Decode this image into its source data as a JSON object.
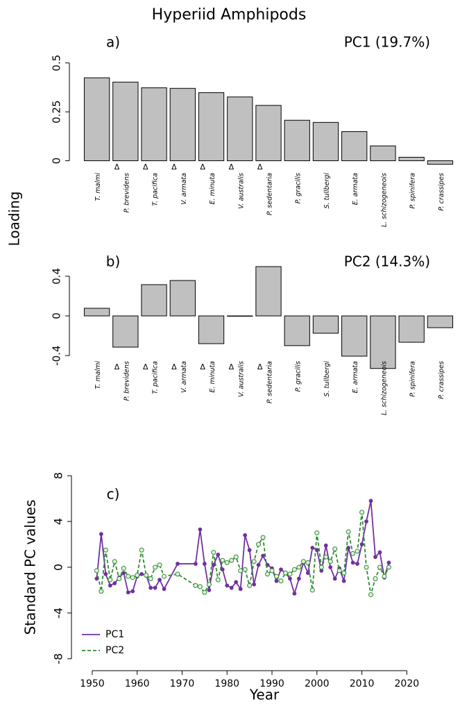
{
  "chart_data": [
    {
      "type": "bar",
      "title": "Hyperiid Amphipods",
      "ylabel": "Loading",
      "panel_label": "a)",
      "subtitle": "PC1 (19.7%)",
      "categories": [
        "T. malmi",
        "P. brevidens",
        "T. pacifica",
        "V. armata",
        "E. minuta",
        "V. australis",
        "P. sedentaria",
        "P. gracilis",
        "S. tullbergi",
        "E. armata",
        "L. schizogeneois",
        "P. spinifera",
        "P. crassipes"
      ],
      "category_symbols": [
        "Δ",
        "Δ",
        "Δ",
        "Δ",
        "Δ",
        "Δ",
        null,
        null,
        null,
        null,
        null,
        null,
        null
      ],
      "values": [
        0.424,
        0.402,
        0.373,
        0.37,
        0.348,
        0.326,
        0.283,
        0.207,
        0.196,
        0.149,
        0.076,
        0.018,
        -0.018
      ],
      "color": "#c0c0c0",
      "ylim": [
        -0.03,
        0.52
      ],
      "yticks": [
        0,
        0.25,
        0.5
      ]
    },
    {
      "type": "bar",
      "panel_label": "b)",
      "subtitle": "PC2 (14.3%)",
      "categories": [
        "T. malmi",
        "P. brevidens",
        "T. pacifica",
        "V. armata",
        "E. minuta",
        "V. australis",
        "P. sedentaria",
        "P. gracilis",
        "S. tullbergi",
        "E. armata",
        "L. schizogeneois",
        "P. spinifera",
        "P. crassipes"
      ],
      "category_symbols": [
        "Δ",
        "Δ",
        "Δ",
        "Δ",
        "Δ",
        "Δ",
        null,
        null,
        null,
        null,
        null,
        null,
        null
      ],
      "values": [
        0.077,
        -0.315,
        0.315,
        0.357,
        -0.28,
        0,
        0.497,
        -0.3,
        -0.175,
        -0.406,
        -0.53,
        -0.266,
        -0.119
      ],
      "color": "#c0c0c0",
      "ylim": [
        -0.56,
        0.56
      ],
      "yticks": [
        0.4,
        0,
        -0.4
      ]
    },
    {
      "type": "line",
      "panel_label": "c)",
      "xlabel": "Year",
      "ylabel": "Standard PC values",
      "x": [
        1951,
        1952,
        1953,
        1954,
        1955,
        1956,
        1957,
        1958,
        1959,
        1960,
        1961,
        1962,
        1963,
        1964,
        1965,
        1966,
        1969,
        1973,
        1974,
        1975,
        1976,
        1977,
        1978,
        1979,
        1980,
        1981,
        1982,
        1983,
        1984,
        1985,
        1986,
        1987,
        1988,
        1989,
        1990,
        1991,
        1992,
        1993,
        1994,
        1995,
        1996,
        1997,
        1998,
        1999,
        2000,
        2001,
        2002,
        2003,
        2004,
        2005,
        2006,
        2007,
        2008,
        2009,
        2010,
        2011,
        2012,
        2013,
        2014,
        2015,
        2016
      ],
      "series": [
        {
          "name": "PC1",
          "color": "#7030a0",
          "dashed": false,
          "values": [
            -1.0,
            2.9,
            -0.6,
            -1.6,
            -1.4,
            -0.9,
            -0.5,
            -2.2,
            -2.1,
            -0.8,
            -0.6,
            -0.7,
            -1.8,
            -1.8,
            -1.1,
            -1.9,
            0.3,
            0.3,
            3.3,
            0.3,
            -2.0,
            0.2,
            1.1,
            -0.2,
            -1.6,
            -1.8,
            -1.3,
            -1.9,
            2.8,
            1.5,
            -1.5,
            0.2,
            1.0,
            0.2,
            -0.1,
            -1.2,
            -0.2,
            -0.5,
            -1.0,
            -2.3,
            -1.0,
            0.4,
            -0.5,
            1.7,
            1.5,
            -0.3,
            1.9,
            0.0,
            -1.0,
            -0.1,
            -1.2,
            1.7,
            0.4,
            0.3,
            2.0,
            4.0,
            5.8,
            0.9,
            1.3,
            -0.9,
            0.4
          ]
        },
        {
          "name": "PC2",
          "color": "#2e8b2e",
          "dashed": true,
          "values": [
            -0.3,
            -2.1,
            1.5,
            -1.1,
            0.5,
            -1.0,
            -0.1,
            -0.8,
            -0.9,
            -0.7,
            1.5,
            -0.7,
            -1.0,
            0.0,
            0.2,
            -0.8,
            -0.6,
            -1.6,
            -1.7,
            -2.2,
            -1.5,
            1.3,
            -1.1,
            0.6,
            0.4,
            0.6,
            0.9,
            -0.3,
            -0.2,
            -1.6,
            0.5,
            2.0,
            2.6,
            -0.6,
            -0.3,
            -0.8,
            -1.2,
            -0.5,
            -0.6,
            -0.2,
            0.0,
            0.5,
            0.4,
            -2.0,
            3.0,
            0.0,
            0.9,
            0.5,
            1.6,
            -0.3,
            -0.5,
            3.1,
            1.2,
            1.4,
            4.8,
            0.0,
            -2.4,
            -1.0,
            0.0,
            -0.8,
            0.0
          ]
        }
      ],
      "xlim": [
        1946,
        2030.6
      ],
      "xticks": [
        1950,
        1960,
        1970,
        1980,
        1990,
        2000,
        2010,
        2020
      ],
      "ylim": [
        -8.8,
        8.8
      ],
      "yticks": [
        8,
        4,
        0,
        -4,
        -8
      ],
      "legend": "bottom-left"
    }
  ]
}
